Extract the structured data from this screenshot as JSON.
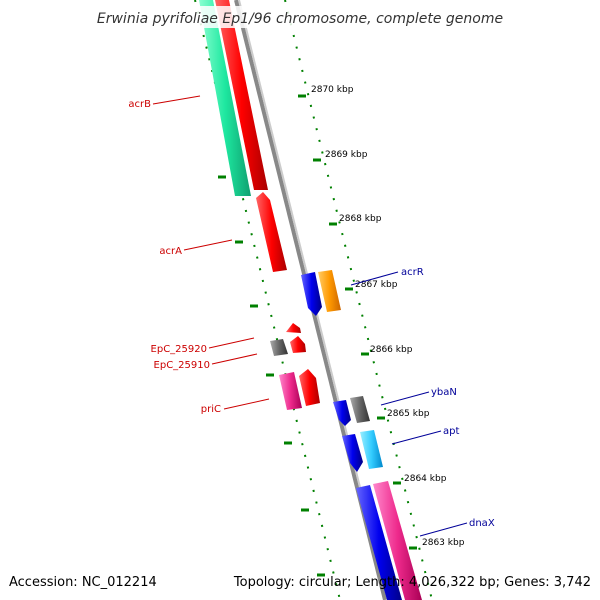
{
  "title": "Erwinia pyrifoliae Ep1/96 chromosome, complete genome",
  "footer": {
    "accession": "Accession: NC_012214",
    "summary": "Topology: circular; Length: 4,026,322 bp; Genes: 3,742"
  },
  "ticks": [
    {
      "label": "2870 kbp",
      "kbp": 2870
    },
    {
      "label": "2869 kbp",
      "kbp": 2869
    },
    {
      "label": "2868 kbp",
      "kbp": 2868
    },
    {
      "label": "2867 kbp",
      "kbp": 2867
    },
    {
      "label": "2866 kbp",
      "kbp": 2866
    },
    {
      "label": "2865 kbp",
      "kbp": 2865
    },
    {
      "label": "2864 kbp",
      "kbp": 2864
    },
    {
      "label": "2863 kbp",
      "kbp": 2863
    }
  ],
  "genes": [
    {
      "label": "acrB",
      "strand": "reverse",
      "color": "#cc0000"
    },
    {
      "label": "acrA",
      "strand": "reverse",
      "color": "#cc0000"
    },
    {
      "label": "EpC_25920",
      "strand": "reverse",
      "color": "#cc0000"
    },
    {
      "label": "EpC_25910",
      "strand": "reverse",
      "color": "#cc0000"
    },
    {
      "label": "priC",
      "strand": "reverse",
      "color": "#cc0000"
    },
    {
      "label": "acrR",
      "strand": "forward",
      "color": "#000099"
    },
    {
      "label": "ybaN",
      "strand": "forward",
      "color": "#000099"
    },
    {
      "label": "apt",
      "strand": "forward",
      "color": "#000099"
    },
    {
      "label": "dnaX",
      "strand": "forward",
      "color": "#000099"
    }
  ],
  "colors": {
    "cds_reverse": "#ff0000",
    "cds_forward": "#0000ee",
    "other_gene": "#666666",
    "backbone": "#888888",
    "gc_skew": "#008000",
    "feature_green": "#1ee8a0",
    "feature_orange": "#ff9900",
    "feature_cyan": "#33ccff",
    "feature_pink": "#ee2a8c"
  }
}
